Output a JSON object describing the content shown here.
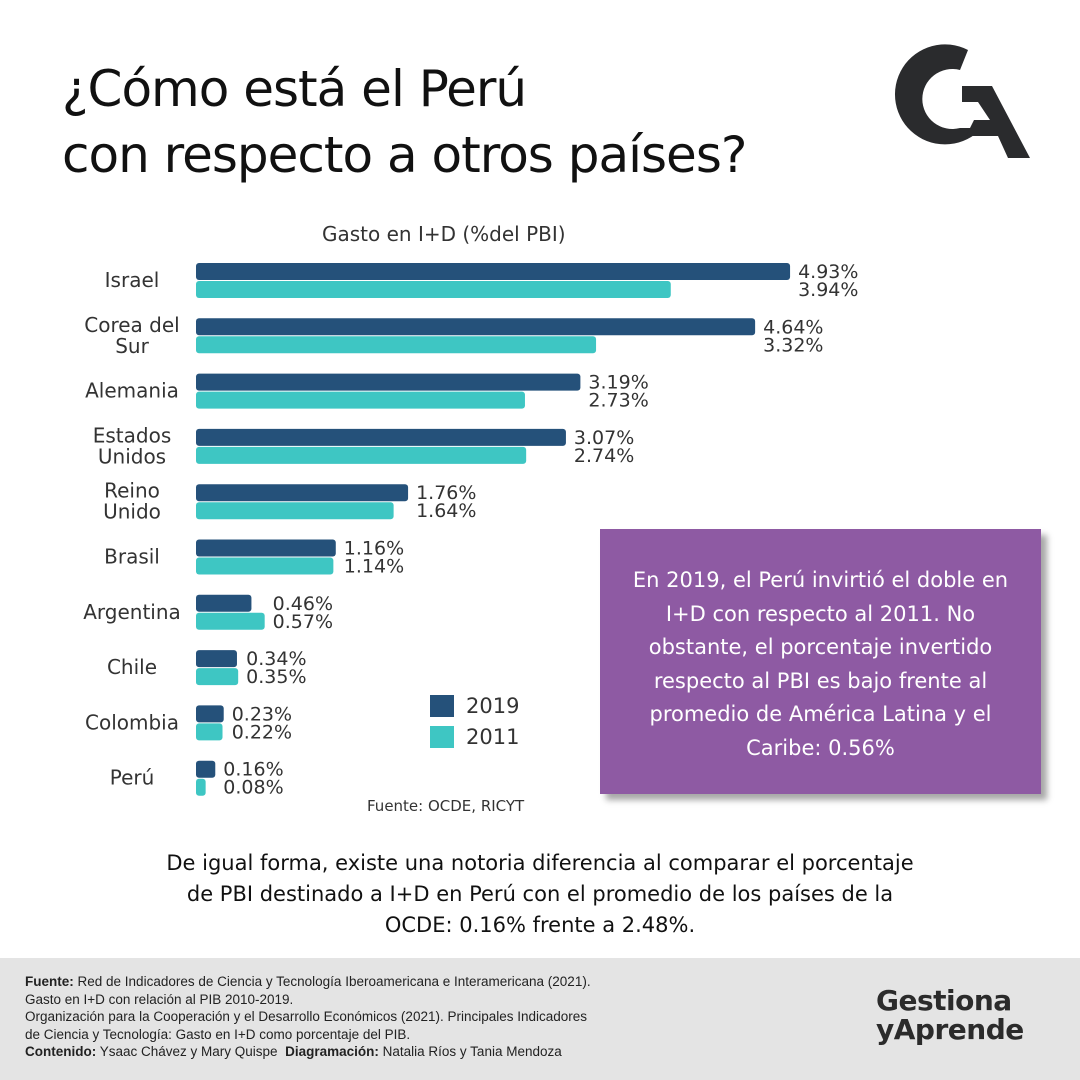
{
  "header": {
    "title_line1": "¿Cómo está el Perú",
    "title_line2": "con respecto a otros países?",
    "logo_text": "GA"
  },
  "chart_data": {
    "type": "bar",
    "orientation": "horizontal",
    "title": "Gasto en I+D (%del PBI)",
    "categories": [
      [
        "Israel"
      ],
      [
        "Corea del",
        "Sur"
      ],
      [
        "Alemania"
      ],
      [
        "Estados",
        "Unidos"
      ],
      [
        "Reino",
        "Unido"
      ],
      [
        "Brasil"
      ],
      [
        "Argentina"
      ],
      [
        "Chile"
      ],
      [
        "Colombia"
      ],
      [
        "Perú"
      ]
    ],
    "series": [
      {
        "name": "2019",
        "color": "#25517a",
        "values": [
          4.93,
          4.64,
          3.19,
          3.07,
          1.76,
          1.16,
          0.46,
          0.34,
          0.23,
          0.16
        ],
        "labels": [
          "4.93%",
          "4.64%",
          "3.19%",
          "3.07%",
          "1.76%",
          "1.16%",
          "0.46%",
          "0.34%",
          "0.23%",
          "0.16%"
        ]
      },
      {
        "name": "2011",
        "color": "#3ec6c3",
        "values": [
          3.94,
          3.32,
          2.73,
          2.74,
          1.64,
          1.14,
          0.57,
          0.35,
          0.22,
          0.08
        ],
        "labels": [
          "3.94%",
          "3.32%",
          "2.73%",
          "2.74%",
          "1.64%",
          "1.14%",
          "0.57%",
          "0.35%",
          "0.22%",
          "0.08%"
        ]
      }
    ],
    "xlim": [
      0,
      5
    ],
    "legend": "bottom-center",
    "source": "Fuente: OCDE, RICYT"
  },
  "callout": "En 2019, el Perú invirtió el doble en I+D con respecto al 2011. No obstante, el porcentaje invertido respecto al PBI es bajo frente al promedio de América Latina y el Caribe: 0.56%",
  "note": "De igual forma, existe una notoria diferencia al comparar el porcentaje de PBI destinado a I+D en Perú con el promedio de los países de la OCDE: 0.16% frente a 2.48%.",
  "footer": {
    "fuente_label": "Fuente:",
    "fuente_1": "Red de Indicadores de Ciencia y Tecnología Iberoamericana e Interamericana (2021).",
    "fuente_2": "Gasto en I+D con relación al PIB 2010-2019.",
    "fuente_3": "Organización para la Cooperación y el Desarrollo Económicos (2021). Principales Indicadores",
    "fuente_4": "de Ciencia y Tecnología: Gasto en I+D como porcentaje del PIB.",
    "contenido_label": "Contenido:",
    "contenido": "Ysaac Chávez y Mary Quispe",
    "diagramacion_label": "Diagramación:",
    "diagramacion": "Natalia Ríos y Tania Mendoza",
    "brand_line1": "Gestiona",
    "brand_line2": "yAprende"
  }
}
